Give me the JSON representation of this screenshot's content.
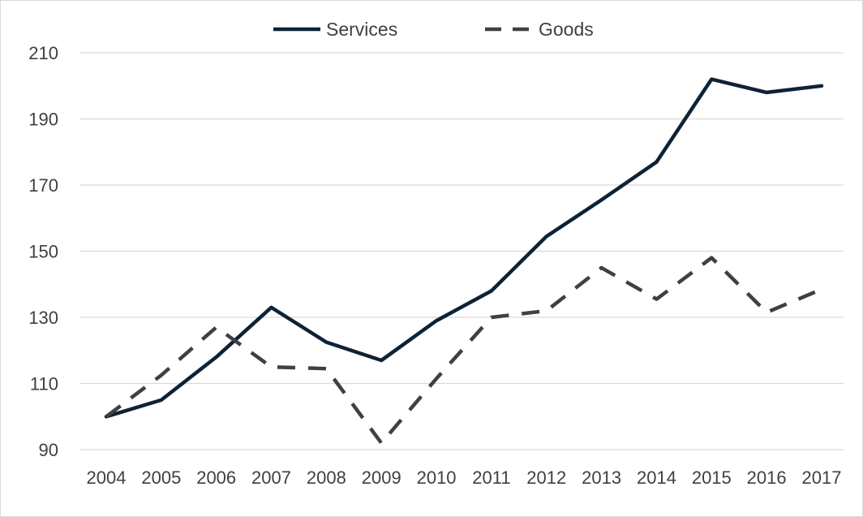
{
  "chart_data": {
    "type": "line",
    "title": "",
    "xlabel": "",
    "ylabel": "",
    "x": [
      "2004",
      "2005",
      "2006",
      "2007",
      "2008",
      "2009",
      "2010",
      "2011",
      "2012",
      "2013",
      "2014",
      "2015",
      "2016",
      "2017"
    ],
    "ylim": [
      90,
      210
    ],
    "yticks": [
      90,
      110,
      130,
      150,
      170,
      190,
      210
    ],
    "grid": "horizontal",
    "legend": "top-center",
    "series": [
      {
        "name": "Services",
        "style": "solid",
        "color": "#0d2235",
        "values": [
          100,
          105,
          118,
          133,
          122.5,
          117,
          129,
          138,
          154.5,
          165.5,
          177,
          202,
          198,
          200
        ]
      },
      {
        "name": "Goods",
        "style": "dashed",
        "color": "#404040",
        "values": [
          100,
          112.5,
          127,
          115,
          114.5,
          92,
          111.5,
          130,
          132,
          145,
          135.5,
          148,
          131.5,
          138.5
        ]
      }
    ]
  }
}
